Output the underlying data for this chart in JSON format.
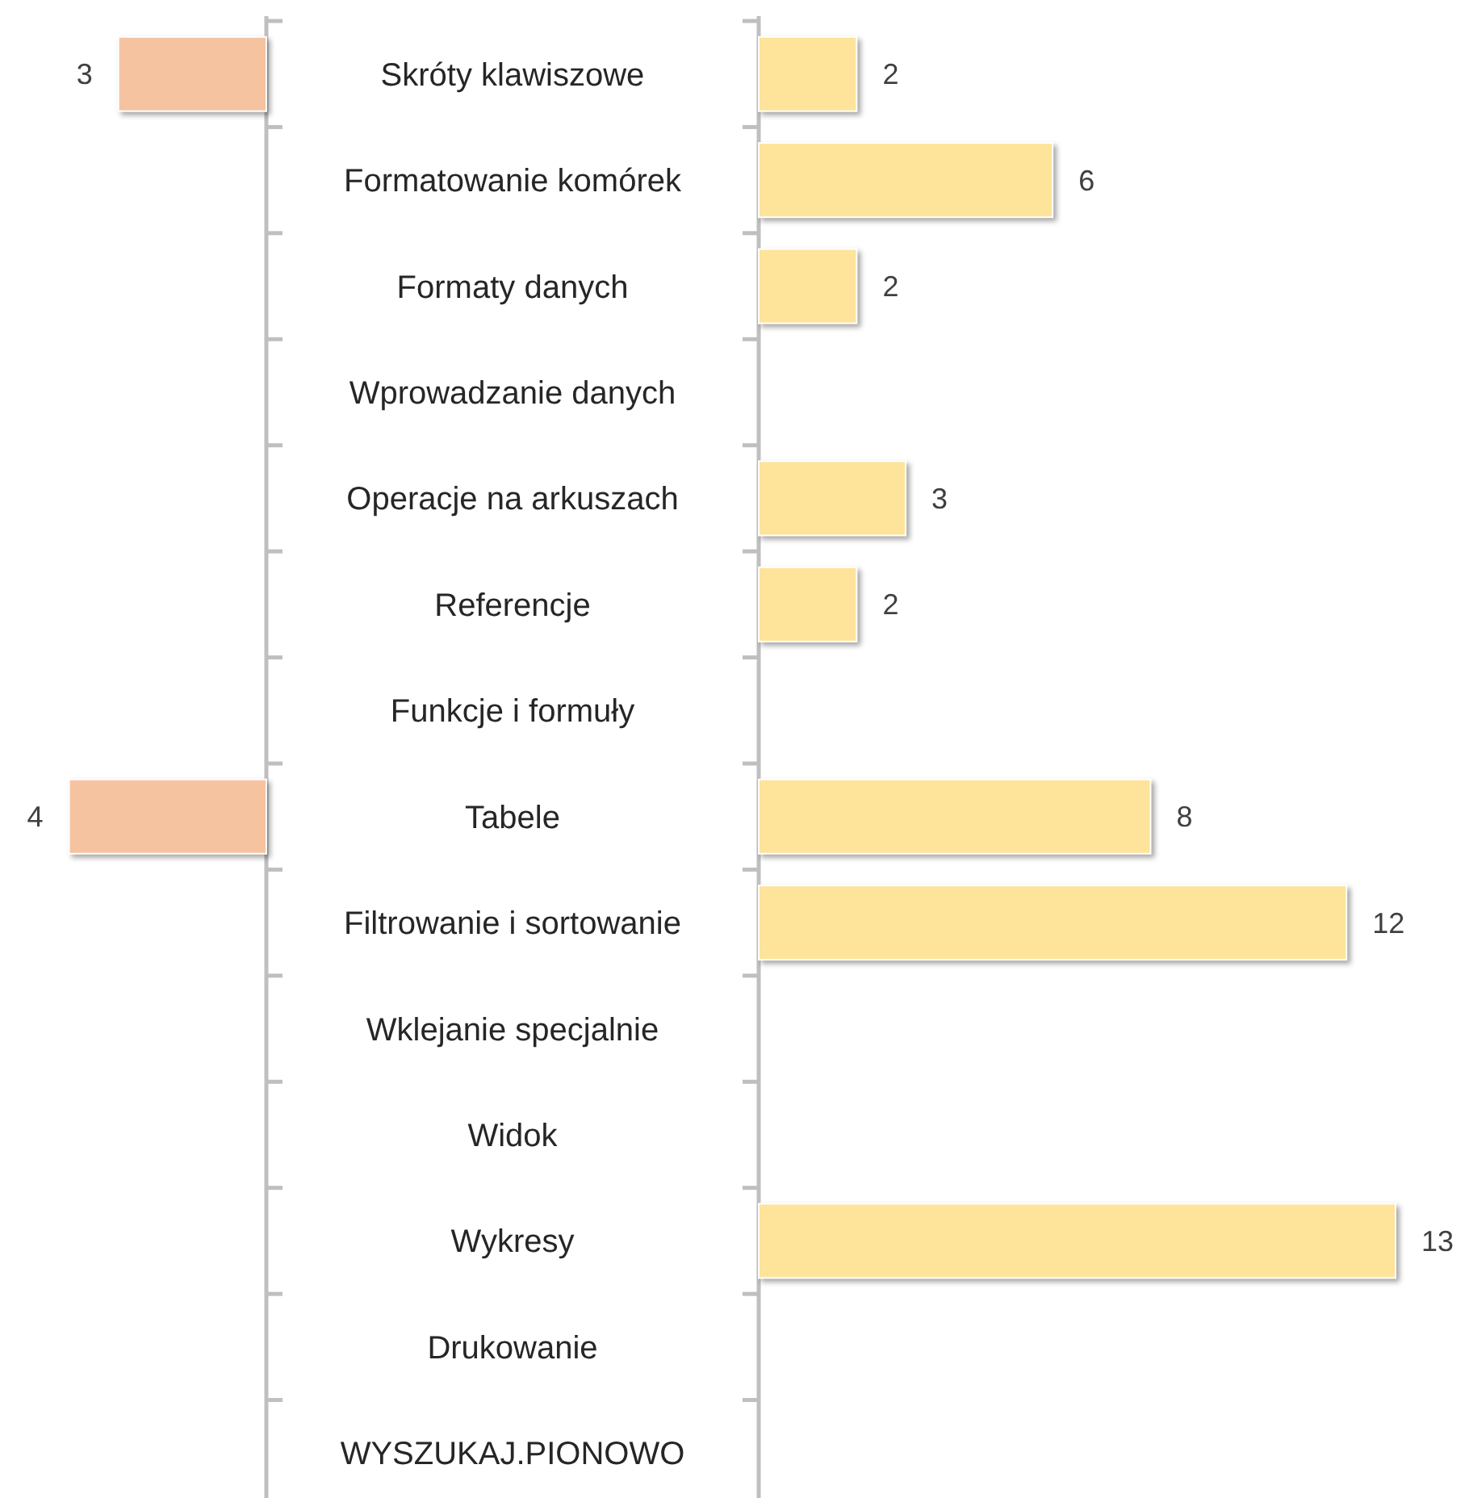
{
  "chart_data": [
    {
      "type": "bar",
      "orientation": "horizontal",
      "categories": [
        "Skróty klawiszowe",
        "Formatowanie komórek",
        "Formaty danych",
        "Wprowadzanie danych",
        "Operacje na arkuszach",
        "Referencje",
        "Funkcje i formuły",
        "Tabele",
        "Filtrowanie i sortowanie",
        "Wklejanie specjalnie",
        "Widok",
        "Wykresy",
        "Drukowanie",
        "WYSZUKAJ.PIONOWO"
      ],
      "values": [
        3,
        null,
        null,
        null,
        null,
        null,
        null,
        4,
        null,
        null,
        null,
        null,
        null,
        null
      ],
      "color": "#f6c3a0",
      "xlim": [
        5.4,
        0
      ],
      "data_labels": true,
      "tick_labels": false
    },
    {
      "type": "bar",
      "orientation": "horizontal",
      "categories": [
        "Skróty klawiszowe",
        "Formatowanie komórek",
        "Formaty danych",
        "Wprowadzanie danych",
        "Operacje na arkuszach",
        "Referencje",
        "Funkcje i formuły",
        "Tabele",
        "Filtrowanie i sortowanie",
        "Wklejanie specjalnie",
        "Widok",
        "Wykresy",
        "Drukowanie",
        "WYSZUKAJ.PIONOWO"
      ],
      "values": [
        2,
        6,
        2,
        null,
        3,
        2,
        null,
        8,
        12,
        null,
        null,
        13,
        null,
        null
      ],
      "color": "#fde49a",
      "xlim": [
        0,
        14.5
      ],
      "data_labels": true,
      "tick_labels": "y"
    }
  ]
}
